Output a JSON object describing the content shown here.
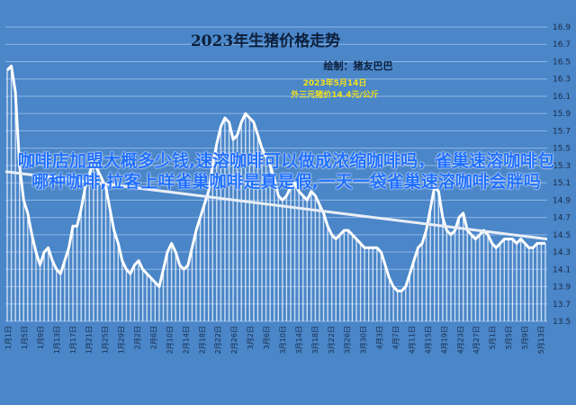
{
  "chart_data": {
    "type": "line",
    "title": "2023年生猪价格走势",
    "credit": "绘制：猪友巴巴",
    "annotation": [
      "2023年5月14日",
      "外三元猪价14.4元/公斤"
    ],
    "annotation_color": "#f4e11a",
    "background_color": "#4a86c8",
    "line_color": "#ffffff",
    "ylim": [
      13.5,
      16.9
    ],
    "y_ticks": [
      "13.5",
      "13.7",
      "13.9",
      "14.1",
      "14.3",
      "14.5",
      "14.7",
      "14.9",
      "15.1",
      "15.3",
      "15.5",
      "15.7",
      "15.9",
      "16.1",
      "16.3",
      "16.5",
      "16.7",
      "16.9"
    ],
    "grid": true,
    "x_tick_labels": [
      "1月1日",
      "1月5日",
      "1月9日",
      "1月13日",
      "1月17日",
      "1月21日",
      "1月25日",
      "1月29日",
      "2月2日",
      "2月6日",
      "2月10日",
      "2月14日",
      "2月18日",
      "2月22日",
      "2月26日",
      "3月2日",
      "3月6日",
      "3月10日",
      "3月14日",
      "3月18日",
      "3月22日",
      "3月26日",
      "3月30日",
      "4月3日",
      "4月7日",
      "4月11日",
      "4月15日",
      "4月19日",
      "4月23日",
      "4月27日",
      "5月1日",
      "5月5日",
      "5月9日",
      "5月13日"
    ],
    "x_range": [
      "1月1日",
      "5月14日"
    ],
    "series": [
      {
        "values": [
          16.4,
          16.45,
          16.15,
          15.3,
          14.9,
          14.75,
          14.5,
          14.3,
          14.15,
          14.3,
          14.35,
          14.2,
          14.1,
          14.05,
          14.2,
          14.35,
          14.6,
          14.6,
          14.8,
          15.05,
          15.2,
          15.35,
          15.25,
          15.15,
          15.05,
          14.8,
          14.55,
          14.4,
          14.2,
          14.1,
          14.05,
          14.15,
          14.2,
          14.1,
          14.05,
          14.0,
          13.95,
          13.9,
          14.1,
          14.3,
          14.4,
          14.3,
          14.15,
          14.1,
          14.15,
          14.35,
          14.55,
          14.7,
          14.85,
          15.0,
          15.3,
          15.55,
          15.75,
          15.85,
          15.8,
          15.6,
          15.65,
          15.8,
          15.9,
          15.85,
          15.8,
          15.65,
          15.5,
          15.4,
          15.3,
          15.15,
          14.95,
          14.9,
          14.95,
          15.05,
          15.1,
          15.0,
          14.95,
          14.9,
          15.0,
          14.95,
          14.85,
          14.75,
          14.6,
          14.5,
          14.45,
          14.5,
          14.55,
          14.55,
          14.5,
          14.45,
          14.4,
          14.35,
          14.35,
          14.35,
          14.35,
          14.3,
          14.15,
          14.0,
          13.9,
          13.85,
          13.85,
          13.9,
          14.05,
          14.2,
          14.35,
          14.4,
          14.55,
          14.8,
          15.05,
          15.0,
          14.7,
          14.55,
          14.5,
          14.55,
          14.7,
          14.75,
          14.55,
          14.5,
          14.45,
          14.5,
          14.55,
          14.5,
          14.4,
          14.35,
          14.4,
          14.45,
          14.45,
          14.45,
          14.4,
          14.45,
          14.4,
          14.35,
          14.35,
          14.4,
          14.4,
          14.4
        ],
        "trendline": [
          15.23,
          14.45
        ]
      }
    ]
  },
  "overlay_text": "咖啡店加盟大概多少钱,速溶咖啡可以做成浓缩咖啡吗，雀巢速溶咖啡包哪种咖啡,拉客上咩雀巢咖啡是真是假,一天一袋雀巢速溶咖啡会胖吗"
}
